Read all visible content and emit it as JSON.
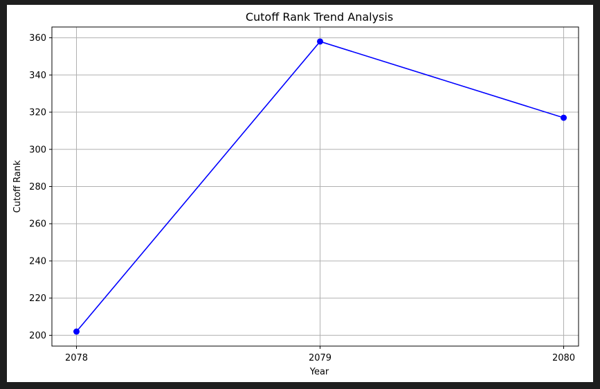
{
  "chart_data": {
    "type": "line",
    "title": "Cutoff Rank Trend Analysis",
    "xlabel": "Year",
    "ylabel": "Cutoff Rank",
    "x": [
      "2078",
      "2079",
      "2080"
    ],
    "series": [
      {
        "values": [
          202,
          358,
          317
        ],
        "color": "#0000ff",
        "marker": "circle"
      }
    ],
    "yticks": [
      200,
      220,
      240,
      260,
      280,
      300,
      320,
      340,
      360
    ],
    "ylim": [
      194.2,
      365.8
    ],
    "grid": true
  }
}
